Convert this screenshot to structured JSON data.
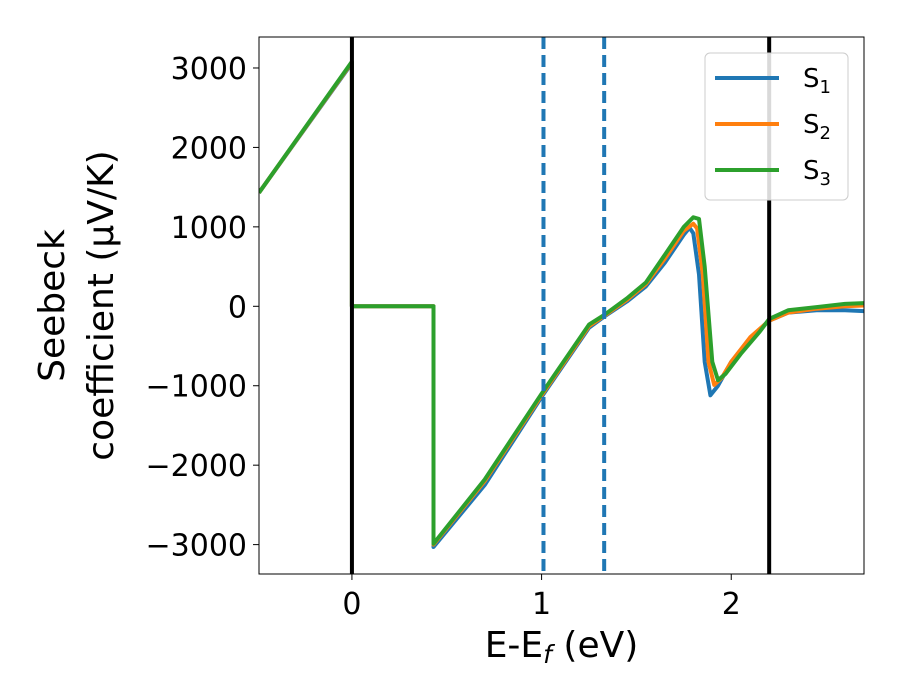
{
  "chart_data": {
    "type": "line",
    "xlabel": "E-E",
    "xlabel_sub": "f",
    "xlabel_unit": " (eV)",
    "ylabel_line1": "Seebeck",
    "ylabel_line2": "coefficient  (μV/K)",
    "xlim": [
      -0.49,
      2.7
    ],
    "ylim": [
      -3370,
      3390
    ],
    "x_ticks": [
      0,
      1,
      2
    ],
    "x_tick_labels": [
      "0",
      "1",
      "2"
    ],
    "y_ticks": [
      -3000,
      -2000,
      -1000,
      0,
      1000,
      2000,
      3000
    ],
    "y_tick_labels": [
      "−3000",
      "−2000",
      "−1000",
      "0",
      "1000",
      "2000",
      "3000"
    ],
    "grid": false,
    "legend_position": "top-right",
    "vertical_lines": [
      {
        "x": 0.0,
        "style": "solid",
        "color": "#000000"
      },
      {
        "x": 2.2,
        "style": "solid",
        "color": "#000000"
      },
      {
        "x": 1.01,
        "style": "dashed",
        "color": "#1f77b4"
      },
      {
        "x": 1.33,
        "style": "dashed",
        "color": "#1f77b4"
      }
    ],
    "series": [
      {
        "name": "S",
        "name_sub": "1",
        "color": "#1f77b4",
        "points": [
          [
            -0.49,
            1430
          ],
          [
            0.0,
            3060
          ],
          [
            0.0,
            0
          ],
          [
            0.43,
            0
          ],
          [
            0.43,
            -3030
          ],
          [
            0.7,
            -2250
          ],
          [
            1.0,
            -1140
          ],
          [
            1.25,
            -270
          ],
          [
            1.33,
            -130
          ],
          [
            1.45,
            60
          ],
          [
            1.55,
            250
          ],
          [
            1.65,
            550
          ],
          [
            1.75,
            900
          ],
          [
            1.78,
            990
          ],
          [
            1.8,
            920
          ],
          [
            1.83,
            400
          ],
          [
            1.86,
            -700
          ],
          [
            1.89,
            -1120
          ],
          [
            1.93,
            -1000
          ],
          [
            2.0,
            -700
          ],
          [
            2.1,
            -400
          ],
          [
            2.2,
            -180
          ],
          [
            2.3,
            -80
          ],
          [
            2.45,
            -50
          ],
          [
            2.6,
            -50
          ],
          [
            2.7,
            -60
          ]
        ]
      },
      {
        "name": "S",
        "name_sub": "2",
        "color": "#ff7f0e",
        "points": [
          [
            -0.49,
            1430
          ],
          [
            0.0,
            3070
          ],
          [
            0.0,
            0
          ],
          [
            0.43,
            0
          ],
          [
            0.43,
            -3000
          ],
          [
            0.7,
            -2200
          ],
          [
            1.0,
            -1120
          ],
          [
            1.25,
            -250
          ],
          [
            1.33,
            -120
          ],
          [
            1.45,
            80
          ],
          [
            1.55,
            280
          ],
          [
            1.65,
            600
          ],
          [
            1.75,
            950
          ],
          [
            1.8,
            1040
          ],
          [
            1.82,
            980
          ],
          [
            1.85,
            400
          ],
          [
            1.88,
            -700
          ],
          [
            1.91,
            -990
          ],
          [
            1.95,
            -900
          ],
          [
            2.0,
            -700
          ],
          [
            2.1,
            -390
          ],
          [
            2.2,
            -180
          ],
          [
            2.3,
            -80
          ],
          [
            2.45,
            -30
          ],
          [
            2.6,
            0
          ],
          [
            2.7,
            10
          ]
        ]
      },
      {
        "name": "S",
        "name_sub": "3",
        "color": "#2ca02c",
        "points": [
          [
            -0.49,
            1430
          ],
          [
            0.0,
            3080
          ],
          [
            0.0,
            0
          ],
          [
            0.43,
            0
          ],
          [
            0.43,
            -2990
          ],
          [
            0.7,
            -2180
          ],
          [
            1.0,
            -1100
          ],
          [
            1.25,
            -230
          ],
          [
            1.33,
            -110
          ],
          [
            1.45,
            100
          ],
          [
            1.55,
            300
          ],
          [
            1.65,
            650
          ],
          [
            1.75,
            1000
          ],
          [
            1.8,
            1120
          ],
          [
            1.83,
            1100
          ],
          [
            1.86,
            500
          ],
          [
            1.9,
            -700
          ],
          [
            1.93,
            -930
          ],
          [
            1.97,
            -850
          ],
          [
            2.05,
            -600
          ],
          [
            2.15,
            -320
          ],
          [
            2.2,
            -160
          ],
          [
            2.3,
            -50
          ],
          [
            2.45,
            -10
          ],
          [
            2.6,
            30
          ],
          [
            2.7,
            40
          ]
        ]
      }
    ]
  }
}
